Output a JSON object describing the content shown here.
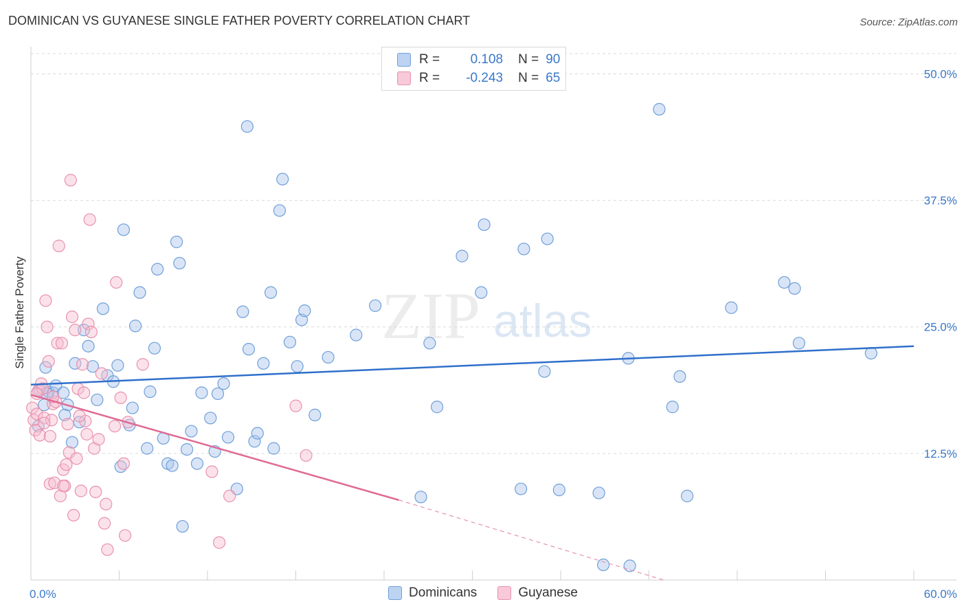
{
  "header": {
    "title": "DOMINICAN VS GUYANESE SINGLE FATHER POVERTY CORRELATION CHART",
    "source": "Source: ZipAtlas.com"
  },
  "watermark": {
    "zip": "ZIP",
    "atlas": "atlas"
  },
  "legend_box": {
    "rows": [
      {
        "r_label": "R =",
        "r_value": "0.108",
        "n_label": "N =",
        "n_value": "90"
      },
      {
        "r_label": "R =",
        "r_value": "-0.243",
        "n_label": "N =",
        "n_value": "65"
      }
    ]
  },
  "chart_data": {
    "type": "scatter",
    "title": "DOMINICAN VS GUYANESE SINGLE FATHER POVERTY CORRELATION CHART",
    "xlabel": "",
    "ylabel": "Single Father Poverty",
    "xlim": [
      0,
      60
    ],
    "ylim": [
      0,
      52
    ],
    "x_tick_labels": [
      "0.0%",
      "60.0%"
    ],
    "y_ticks": [
      12.5,
      25.0,
      37.5,
      50.0
    ],
    "y_tick_labels": [
      "12.5%",
      "25.0%",
      "37.5%",
      "50.0%"
    ],
    "grid": true,
    "legend_position": "bottom-center",
    "colors": {
      "Dominicans": "#3a78c9",
      "Guyanese": "#e07098"
    },
    "series": [
      {
        "name": "Dominicans",
        "trend": {
          "x": [
            0,
            60
          ],
          "y": [
            19.3,
            23.1
          ]
        },
        "points": [
          [
            0.5,
            15.2
          ],
          [
            0.6,
            18.8
          ],
          [
            0.9,
            17.3
          ],
          [
            1.2,
            18.6
          ],
          [
            1.0,
            21.0
          ],
          [
            1.5,
            18.5
          ],
          [
            1.7,
            19.2
          ],
          [
            2.2,
            18.5
          ],
          [
            2.5,
            17.3
          ],
          [
            2.3,
            16.3
          ],
          [
            2.8,
            13.6
          ],
          [
            3.0,
            21.4
          ],
          [
            3.3,
            15.6
          ],
          [
            3.6,
            24.7
          ],
          [
            3.9,
            23.1
          ],
          [
            4.2,
            21.1
          ],
          [
            4.5,
            17.8
          ],
          [
            4.9,
            26.8
          ],
          [
            5.2,
            20.2
          ],
          [
            5.6,
            19.6
          ],
          [
            5.9,
            21.2
          ],
          [
            6.1,
            11.2
          ],
          [
            6.3,
            34.6
          ],
          [
            6.7,
            15.3
          ],
          [
            6.9,
            17.0
          ],
          [
            7.1,
            25.1
          ],
          [
            7.4,
            28.4
          ],
          [
            7.9,
            13.0
          ],
          [
            8.1,
            18.6
          ],
          [
            8.4,
            22.9
          ],
          [
            8.6,
            30.7
          ],
          [
            9.0,
            14.0
          ],
          [
            9.3,
            11.5
          ],
          [
            9.6,
            11.3
          ],
          [
            9.9,
            33.4
          ],
          [
            10.1,
            31.3
          ],
          [
            10.3,
            5.3
          ],
          [
            10.6,
            12.9
          ],
          [
            10.9,
            14.7
          ],
          [
            11.3,
            11.5
          ],
          [
            11.6,
            18.5
          ],
          [
            12.2,
            16.0
          ],
          [
            12.5,
            12.7
          ],
          [
            12.7,
            18.4
          ],
          [
            13.1,
            19.4
          ],
          [
            13.4,
            14.1
          ],
          [
            14.0,
            9.0
          ],
          [
            14.4,
            26.5
          ],
          [
            14.8,
            22.8
          ],
          [
            15.2,
            13.7
          ],
          [
            15.4,
            14.5
          ],
          [
            15.8,
            21.4
          ],
          [
            16.3,
            28.4
          ],
          [
            16.5,
            13.0
          ],
          [
            16.9,
            36.5
          ],
          [
            17.1,
            39.6
          ],
          [
            17.6,
            23.5
          ],
          [
            18.1,
            21.1
          ],
          [
            18.4,
            25.7
          ],
          [
            18.6,
            26.6
          ],
          [
            19.3,
            16.3
          ],
          [
            20.2,
            22.0
          ],
          [
            22.1,
            24.2
          ],
          [
            23.4,
            27.1
          ],
          [
            26.5,
            8.2
          ],
          [
            27.1,
            23.4
          ],
          [
            27.6,
            17.1
          ],
          [
            29.3,
            32.0
          ],
          [
            30.6,
            28.4
          ],
          [
            30.8,
            35.1
          ],
          [
            33.3,
            9.0
          ],
          [
            33.5,
            32.7
          ],
          [
            34.9,
            20.6
          ],
          [
            35.1,
            33.7
          ],
          [
            35.9,
            8.9
          ],
          [
            38.6,
            8.6
          ],
          [
            38.9,
            1.5
          ],
          [
            40.6,
            21.9
          ],
          [
            40.7,
            1.4
          ],
          [
            42.7,
            46.5
          ],
          [
            43.6,
            17.1
          ],
          [
            44.1,
            20.1
          ],
          [
            44.6,
            8.3
          ],
          [
            47.6,
            26.9
          ],
          [
            51.2,
            29.4
          ],
          [
            51.9,
            28.8
          ],
          [
            52.2,
            23.4
          ],
          [
            57.1,
            22.4
          ],
          [
            14.7,
            44.8
          ],
          [
            1.1,
            18.4
          ]
        ]
      },
      {
        "name": "Guyanese",
        "trend": {
          "x": [
            0,
            25
          ],
          "y": [
            18.3,
            7.9
          ]
        },
        "trend_extended": {
          "x": [
            25,
            43
          ],
          "y": [
            7.9,
            0
          ]
        },
        "points": [
          [
            0.1,
            17.0
          ],
          [
            0.2,
            15.8
          ],
          [
            0.3,
            14.8
          ],
          [
            0.4,
            16.4
          ],
          [
            0.5,
            18.7
          ],
          [
            0.6,
            14.3
          ],
          [
            0.7,
            19.4
          ],
          [
            0.8,
            18.9
          ],
          [
            0.9,
            16.0
          ],
          [
            1.0,
            27.6
          ],
          [
            1.1,
            25.0
          ],
          [
            1.2,
            21.6
          ],
          [
            1.3,
            9.5
          ],
          [
            1.4,
            15.8
          ],
          [
            1.5,
            17.4
          ],
          [
            1.6,
            9.6
          ],
          [
            1.7,
            17.6
          ],
          [
            1.8,
            23.4
          ],
          [
            1.9,
            33.0
          ],
          [
            2.0,
            8.3
          ],
          [
            2.1,
            23.4
          ],
          [
            2.2,
            10.9
          ],
          [
            2.3,
            9.3
          ],
          [
            2.4,
            11.4
          ],
          [
            2.5,
            15.4
          ],
          [
            2.6,
            12.6
          ],
          [
            2.7,
            39.5
          ],
          [
            2.8,
            26.0
          ],
          [
            2.9,
            6.4
          ],
          [
            3.0,
            24.7
          ],
          [
            3.1,
            12.0
          ],
          [
            3.2,
            18.9
          ],
          [
            3.4,
            8.8
          ],
          [
            3.5,
            21.3
          ],
          [
            3.6,
            18.5
          ],
          [
            3.7,
            15.7
          ],
          [
            3.8,
            14.4
          ],
          [
            3.9,
            25.3
          ],
          [
            4.0,
            35.6
          ],
          [
            4.1,
            24.5
          ],
          [
            4.3,
            13.0
          ],
          [
            4.4,
            8.7
          ],
          [
            4.6,
            13.9
          ],
          [
            4.8,
            20.4
          ],
          [
            5.0,
            5.6
          ],
          [
            5.1,
            7.5
          ],
          [
            5.2,
            3.0
          ],
          [
            5.8,
            29.4
          ],
          [
            6.1,
            18.0
          ],
          [
            6.3,
            11.5
          ],
          [
            6.4,
            4.4
          ],
          [
            6.6,
            15.6
          ],
          [
            7.6,
            21.3
          ],
          [
            12.3,
            10.7
          ],
          [
            13.5,
            8.3
          ],
          [
            18.0,
            17.2
          ],
          [
            18.7,
            12.3
          ],
          [
            12.8,
            3.7
          ],
          [
            1.3,
            14.2
          ],
          [
            0.9,
            15.5
          ],
          [
            2.2,
            9.3
          ],
          [
            1.5,
            18.1
          ],
          [
            0.4,
            18.4
          ],
          [
            3.3,
            16.2
          ],
          [
            5.7,
            15.2
          ]
        ]
      }
    ]
  },
  "bottom_legend": {
    "items": [
      {
        "label": "Dominicans"
      },
      {
        "label": "Guyanese"
      }
    ]
  }
}
